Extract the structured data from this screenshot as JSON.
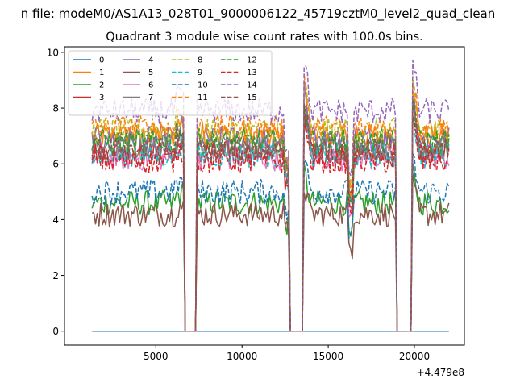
{
  "chart_data": {
    "type": "line",
    "suptitle": "n file: modeM0/AS1A13_028T01_9000006122_45719cztM0_level2_quad_clean",
    "title": "Quadrant 3 module wise count rates with 100.0s bins.",
    "xlabel": "",
    "ylabel": "",
    "offset_text": "+4.479e8",
    "xlim": [
      -300,
      22900
    ],
    "ylim": [
      -0.5,
      10.2
    ],
    "x_ticks": [
      5000,
      10000,
      15000,
      20000
    ],
    "x_tick_labels": [
      "5000",
      "10000",
      "15000",
      "20000"
    ],
    "y_ticks": [
      0,
      2,
      4,
      6,
      8,
      10
    ],
    "y_tick_labels": [
      "0",
      "2",
      "4",
      "6",
      "8",
      "10"
    ],
    "grid": false,
    "legend_position": "top-left",
    "legend_ncol": 4,
    "bin_size_s": 100,
    "x_start": 1300,
    "x_end": 22000,
    "segments": [
      {
        "start": 1300,
        "end": 6600
      },
      {
        "start": 7400,
        "end": 12750
      },
      {
        "start": 13600,
        "end": 18900
      },
      {
        "start": 19900,
        "end": 22000
      }
    ],
    "series": [
      {
        "name": "0",
        "color": "#1f77b4",
        "dash": "solid",
        "base": 0.0,
        "note": "flat zero"
      },
      {
        "name": "1",
        "color": "#ff7f0e",
        "dash": "solid",
        "base": 7.0
      },
      {
        "name": "2",
        "color": "#2ca02c",
        "dash": "solid",
        "base": 4.6
      },
      {
        "name": "3",
        "color": "#d62728",
        "dash": "solid",
        "base": 6.4
      },
      {
        "name": "4",
        "color": "#9467bd",
        "dash": "solid",
        "base": 6.9
      },
      {
        "name": "5",
        "color": "#8c564b",
        "dash": "solid",
        "base": 4.2
      },
      {
        "name": "6",
        "color": "#e377c2",
        "dash": "solid",
        "base": 6.2
      },
      {
        "name": "7",
        "color": "#7f7f7f",
        "dash": "solid",
        "base": 6.6
      },
      {
        "name": "8",
        "color": "#bcbd22",
        "dash": "dashed",
        "base": 7.2
      },
      {
        "name": "9",
        "color": "#17becf",
        "dash": "dashed",
        "base": 6.3
      },
      {
        "name": "10",
        "color": "#1f77b4",
        "dash": "dashed",
        "base": 5.0
      },
      {
        "name": "11",
        "color": "#ff7f0e",
        "dash": "dashed",
        "base": 7.3
      },
      {
        "name": "12",
        "color": "#2ca02c",
        "dash": "dashed",
        "base": 6.8
      },
      {
        "name": "13",
        "color": "#d62728",
        "dash": "dashed",
        "base": 6.1
      },
      {
        "name": "14",
        "color": "#9467bd",
        "dash": "dashed",
        "base": 7.9
      },
      {
        "name": "15",
        "color": "#8c564b",
        "dash": "dashed",
        "base": 6.5
      }
    ]
  }
}
